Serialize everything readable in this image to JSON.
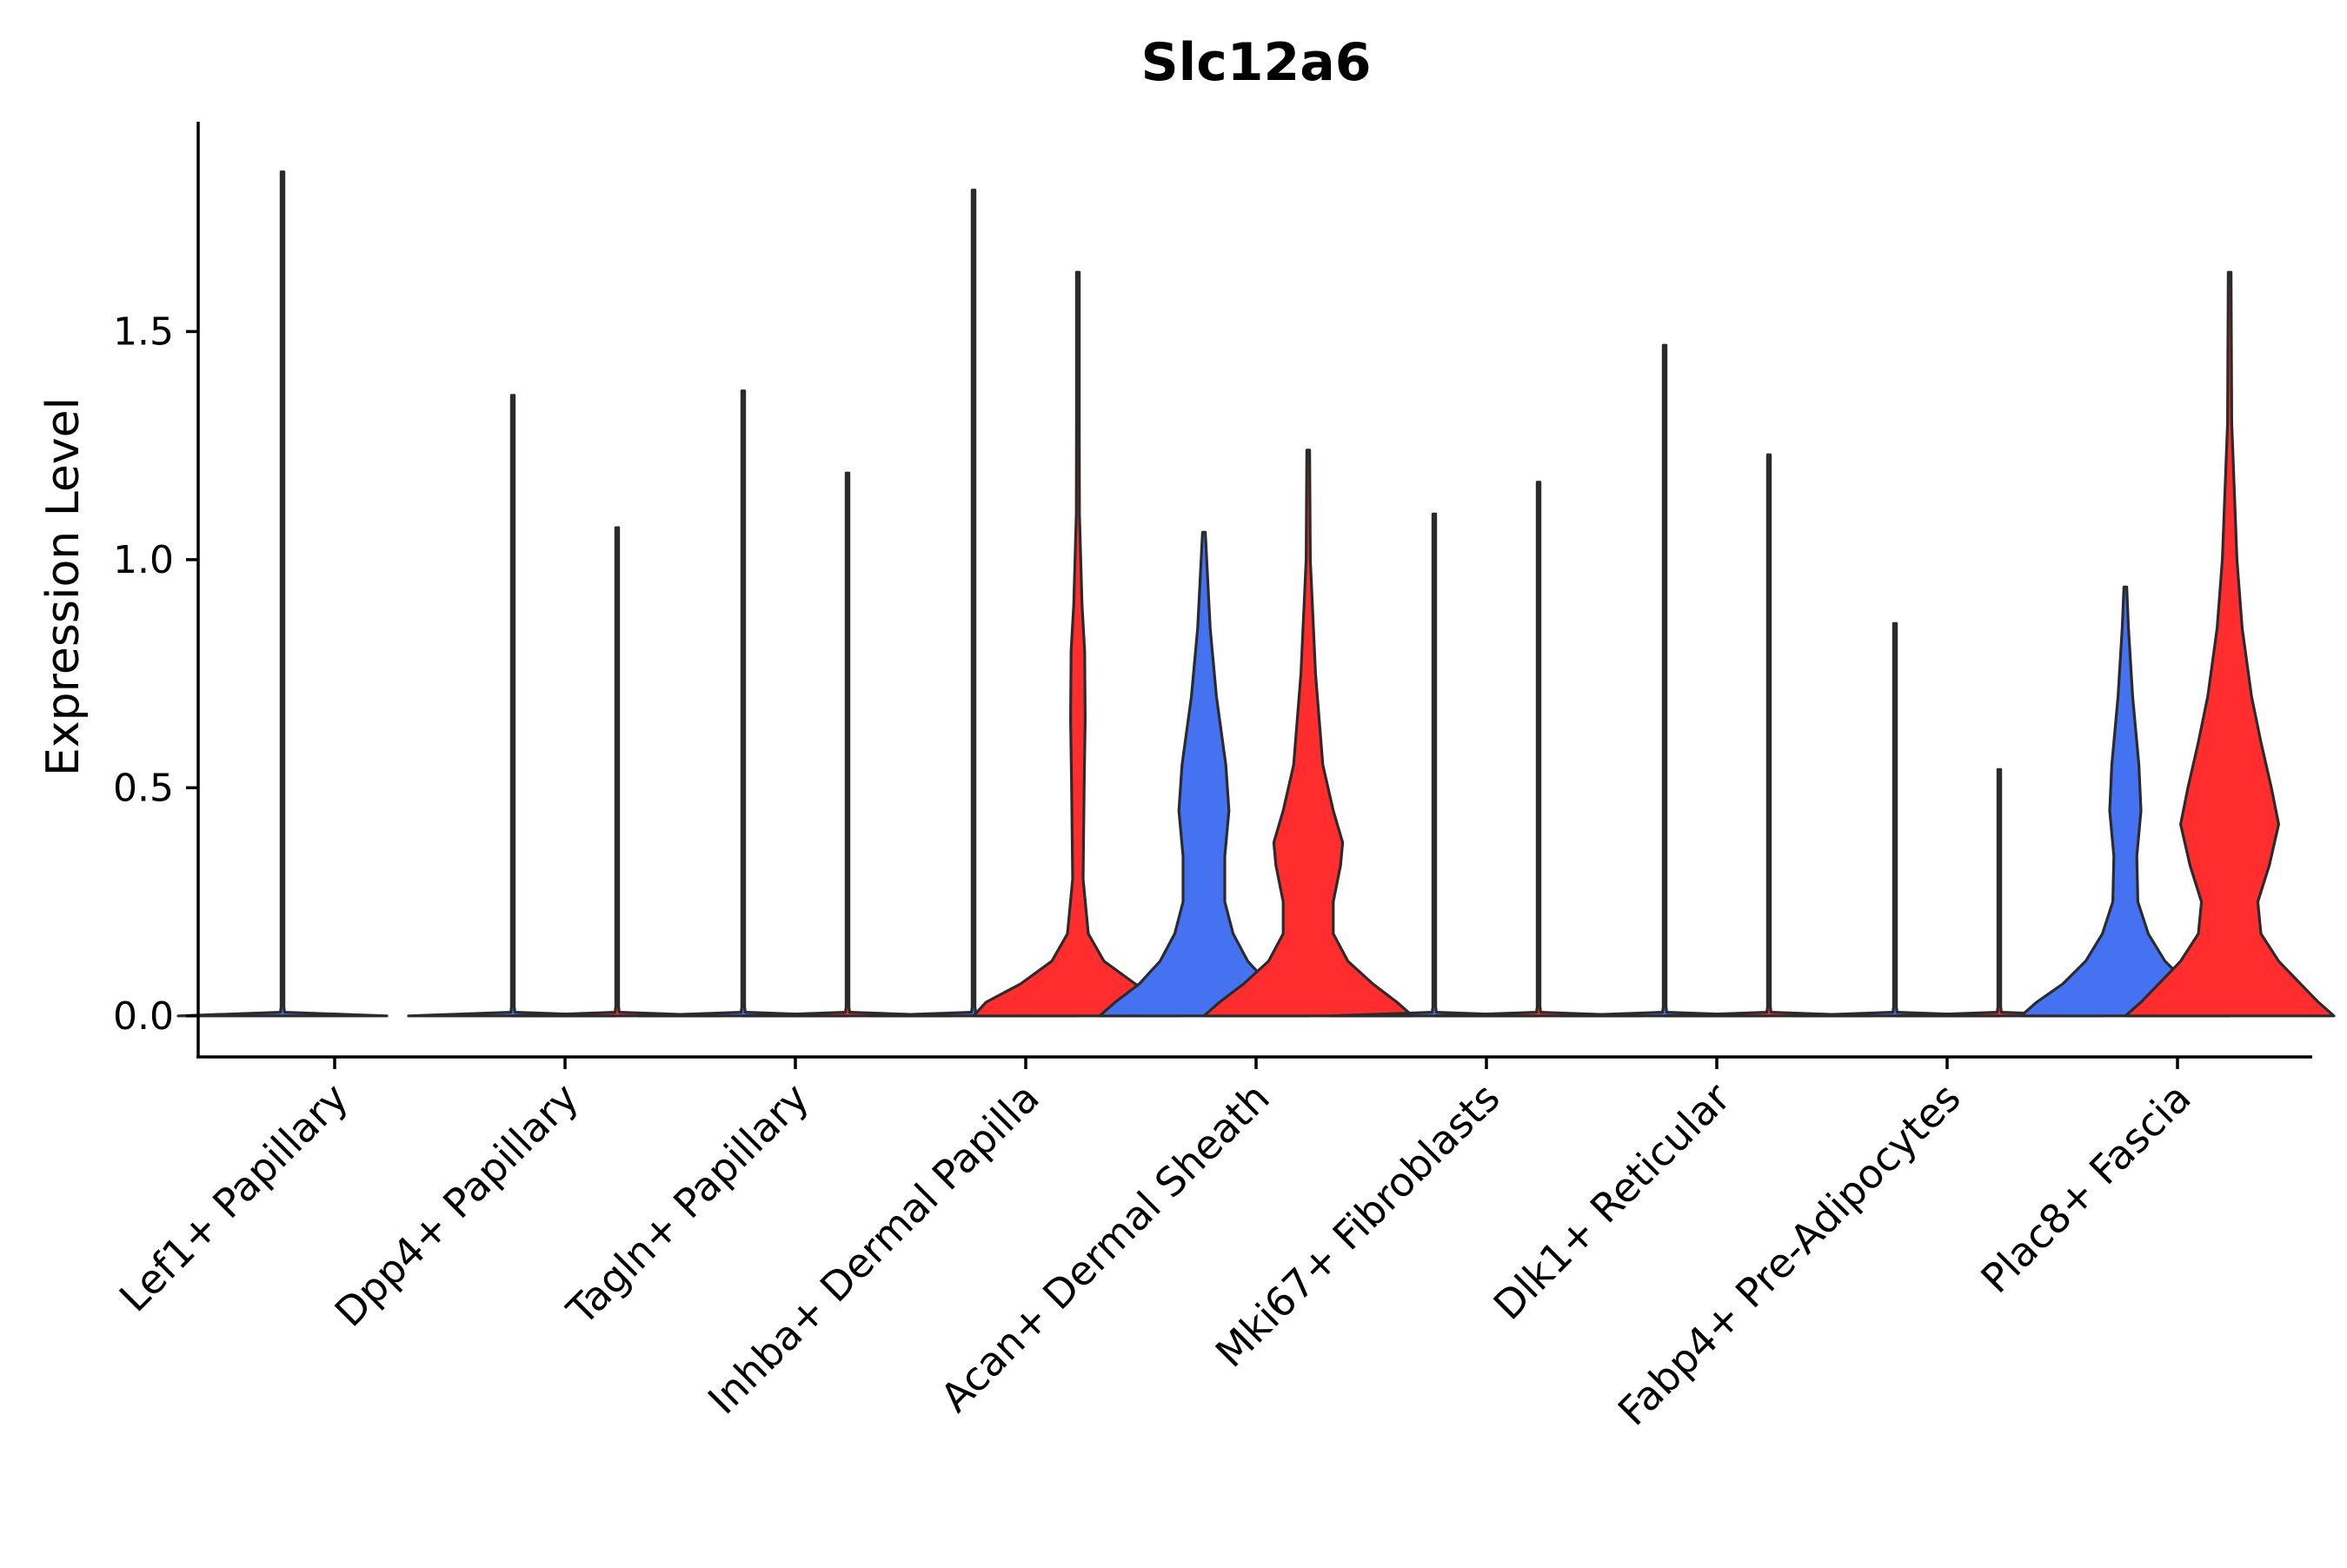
{
  "chart_data": {
    "type": "violin",
    "title": "Slc12a6",
    "xlabel": "",
    "ylabel": "Expression Level",
    "ylim": [
      -0.09,
      1.96
    ],
    "yticks": [
      0.0,
      0.5,
      1.0,
      1.5
    ],
    "ytick_labels": [
      "0.0",
      "0.5",
      "1.0",
      "1.5"
    ],
    "grid": false,
    "legend": "none",
    "colors": {
      "group1": "#4472F0",
      "group2": "#FF2D2D",
      "outline": "#2B2B2B",
      "axis": "#000000"
    },
    "categories": [
      "Lef1+ Papillary",
      "Dpp4+ Papillary",
      "Tagln+ Papillary",
      "Inhba+ Dermal Papilla",
      "Acan+ Dermal Sheath",
      "Mki67+ Fibroblasts",
      "Dlk1+ Reticular",
      "Fabp4+ Pre-Adipocytes",
      "Plac8+ Fascia"
    ],
    "series": [
      {
        "name": "group1",
        "color": "#4472F0",
        "max": [
          1.85,
          1.36,
          1.37,
          1.81,
          1.06,
          1.1,
          1.47,
          0.86,
          0.94
        ]
      },
      {
        "name": "group2",
        "color": "#FF2D2D",
        "max": [
          null,
          1.07,
          1.19,
          1.63,
          1.24,
          1.17,
          1.23,
          0.54,
          1.63
        ]
      }
    ],
    "violins": [
      {
        "category": 0,
        "group": "group1",
        "max": 1.85,
        "shape": [
          [
            0,
            1.0
          ],
          [
            0.008,
            0.02
          ],
          [
            0.02,
            0.002
          ],
          [
            1.85,
            0.002
          ]
        ]
      },
      {
        "category": 1,
        "group": "group1",
        "max": 1.36,
        "shape": [
          [
            0,
            1.0
          ],
          [
            0.008,
            0.02
          ],
          [
            0.02,
            0.002
          ],
          [
            1.36,
            0.002
          ]
        ]
      },
      {
        "category": 1,
        "group": "group2",
        "max": 1.07,
        "shape": [
          [
            0,
            1.0
          ],
          [
            0.008,
            0.02
          ],
          [
            0.02,
            0.002
          ],
          [
            1.07,
            0.002
          ]
        ]
      },
      {
        "category": 2,
        "group": "group1",
        "max": 1.37,
        "shape": [
          [
            0,
            1.0
          ],
          [
            0.008,
            0.02
          ],
          [
            0.02,
            0.002
          ],
          [
            1.37,
            0.002
          ]
        ]
      },
      {
        "category": 2,
        "group": "group2",
        "max": 1.19,
        "shape": [
          [
            0,
            1.0
          ],
          [
            0.008,
            0.02
          ],
          [
            0.02,
            0.002
          ],
          [
            1.19,
            0.002
          ]
        ]
      },
      {
        "category": 3,
        "group": "group1",
        "max": 1.81,
        "shape": [
          [
            0,
            1.0
          ],
          [
            0.008,
            0.02
          ],
          [
            0.02,
            0.002
          ],
          [
            1.81,
            0.002
          ]
        ]
      },
      {
        "category": 3,
        "group": "group2",
        "max": 1.63,
        "shape": [
          [
            0,
            1.0
          ],
          [
            0.03,
            0.88
          ],
          [
            0.07,
            0.55
          ],
          [
            0.12,
            0.25
          ],
          [
            0.18,
            0.1
          ],
          [
            0.3,
            0.05
          ],
          [
            0.5,
            0.06
          ],
          [
            0.65,
            0.07
          ],
          [
            0.8,
            0.065
          ],
          [
            0.9,
            0.04
          ],
          [
            1.1,
            0.015
          ],
          [
            1.3,
            0.008
          ],
          [
            1.63,
            0.003
          ]
        ]
      },
      {
        "category": 4,
        "group": "group1",
        "max": 1.06,
        "shape": [
          [
            0,
            1.0
          ],
          [
            0.03,
            0.85
          ],
          [
            0.07,
            0.62
          ],
          [
            0.12,
            0.42
          ],
          [
            0.18,
            0.28
          ],
          [
            0.25,
            0.2
          ],
          [
            0.35,
            0.2
          ],
          [
            0.45,
            0.24
          ],
          [
            0.55,
            0.21
          ],
          [
            0.7,
            0.12
          ],
          [
            0.85,
            0.06
          ],
          [
            1.06,
            0.008
          ]
        ]
      },
      {
        "category": 4,
        "group": "group2",
        "max": 1.24,
        "shape": [
          [
            0,
            1.0
          ],
          [
            0.03,
            0.85
          ],
          [
            0.07,
            0.62
          ],
          [
            0.12,
            0.38
          ],
          [
            0.18,
            0.24
          ],
          [
            0.25,
            0.24
          ],
          [
            0.33,
            0.31
          ],
          [
            0.38,
            0.33
          ],
          [
            0.45,
            0.24
          ],
          [
            0.55,
            0.14
          ],
          [
            0.75,
            0.07
          ],
          [
            1.0,
            0.02
          ],
          [
            1.24,
            0.005
          ]
        ]
      },
      {
        "category": 5,
        "group": "group1",
        "max": 1.1,
        "shape": [
          [
            0,
            1.0
          ],
          [
            0.008,
            0.02
          ],
          [
            0.02,
            0.002
          ],
          [
            1.1,
            0.002
          ]
        ]
      },
      {
        "category": 5,
        "group": "group2",
        "max": 1.17,
        "shape": [
          [
            0,
            1.0
          ],
          [
            0.008,
            0.02
          ],
          [
            0.02,
            0.002
          ],
          [
            1.17,
            0.002
          ]
        ]
      },
      {
        "category": 6,
        "group": "group1",
        "max": 1.47,
        "shape": [
          [
            0,
            1.0
          ],
          [
            0.008,
            0.02
          ],
          [
            0.02,
            0.002
          ],
          [
            1.47,
            0.002
          ]
        ]
      },
      {
        "category": 6,
        "group": "group2",
        "max": 1.23,
        "shape": [
          [
            0,
            1.0
          ],
          [
            0.008,
            0.02
          ],
          [
            0.02,
            0.002
          ],
          [
            1.23,
            0.002
          ]
        ]
      },
      {
        "category": 7,
        "group": "group1",
        "max": 0.86,
        "shape": [
          [
            0,
            1.0
          ],
          [
            0.008,
            0.02
          ],
          [
            0.02,
            0.002
          ],
          [
            0.86,
            0.002
          ]
        ]
      },
      {
        "category": 7,
        "group": "group2",
        "max": 0.54,
        "shape": [
          [
            0,
            1.0
          ],
          [
            0.008,
            0.02
          ],
          [
            0.02,
            0.002
          ],
          [
            0.54,
            0.002
          ]
        ]
      },
      {
        "category": 8,
        "group": "group1",
        "max": 0.94,
        "shape": [
          [
            0,
            1.0
          ],
          [
            0.03,
            0.85
          ],
          [
            0.07,
            0.6
          ],
          [
            0.12,
            0.38
          ],
          [
            0.18,
            0.22
          ],
          [
            0.25,
            0.12
          ],
          [
            0.35,
            0.11
          ],
          [
            0.45,
            0.15
          ],
          [
            0.55,
            0.13
          ],
          [
            0.7,
            0.07
          ],
          [
            0.85,
            0.03
          ],
          [
            0.94,
            0.005
          ]
        ]
      },
      {
        "category": 8,
        "group": "group2",
        "max": 1.63,
        "shape": [
          [
            0,
            1.0
          ],
          [
            0.03,
            0.85
          ],
          [
            0.07,
            0.68
          ],
          [
            0.12,
            0.47
          ],
          [
            0.18,
            0.3
          ],
          [
            0.25,
            0.27
          ],
          [
            0.33,
            0.38
          ],
          [
            0.42,
            0.47
          ],
          [
            0.5,
            0.4
          ],
          [
            0.6,
            0.3
          ],
          [
            0.7,
            0.21
          ],
          [
            0.85,
            0.12
          ],
          [
            1.0,
            0.07
          ],
          [
            1.3,
            0.02
          ],
          [
            1.63,
            0.004
          ]
        ]
      }
    ]
  }
}
